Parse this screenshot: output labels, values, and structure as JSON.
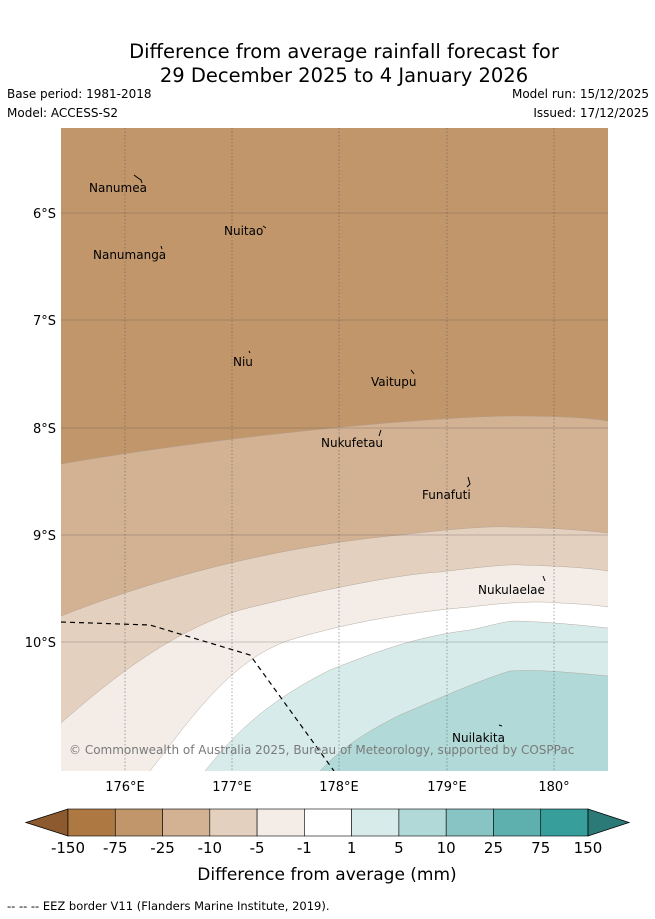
{
  "title": {
    "line1": "Difference from average rainfall forecast for",
    "line2": "29 December 2025 to 4 January 2026"
  },
  "meta": {
    "base_period": "Base period: 1981-2018",
    "model": "Model: ACCESS-S2",
    "model_run": "Model run: 15/12/2025",
    "issued": "Issued: 17/12/2025"
  },
  "map": {
    "lat_labels": [
      "6°S",
      "7°S",
      "8°S",
      "9°S",
      "10°S"
    ],
    "lon_labels": [
      "176°E",
      "177°E",
      "178°E",
      "179°E",
      "180°"
    ],
    "places": [
      {
        "name": "Nanumea"
      },
      {
        "name": "Nuitao"
      },
      {
        "name": "Nanumanga"
      },
      {
        "name": "Niu"
      },
      {
        "name": "Vaitupu"
      },
      {
        "name": "Nukufetau"
      },
      {
        "name": "Funafuti"
      },
      {
        "name": "Nukulaelae"
      },
      {
        "name": "Nuilakita"
      }
    ],
    "copyright": "© Commonwealth of Australia 2025, Bureau of Meteorology, supported by COSPPac"
  },
  "colorbar": {
    "label": "Difference from average (mm)",
    "ticks": [
      "-150",
      "-75",
      "-25",
      "-10",
      "-5",
      "-1",
      "1",
      "5",
      "10",
      "25",
      "75",
      "150"
    ],
    "colors": [
      "#8c5a2e",
      "#ad7842",
      "#c1966b",
      "#d3b193",
      "#e3d0bf",
      "#f3ece7",
      "#ffffff",
      "#d6ebea",
      "#b0d9d8",
      "#88c4c3",
      "#5eb0ae",
      "#379e9c",
      "#2b7a78"
    ]
  },
  "footnote": "-- -- -- EEZ border V11 (Flanders Marine Institute, 2019)."
}
